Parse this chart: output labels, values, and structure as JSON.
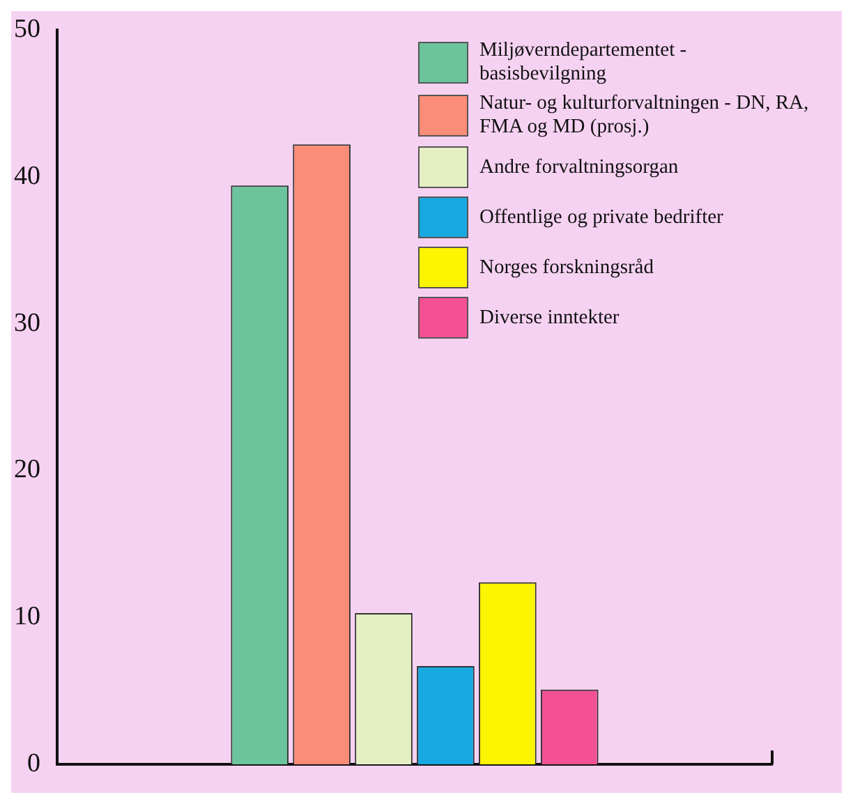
{
  "chart_data": {
    "type": "bar",
    "categories": [
      null
    ],
    "series": [
      {
        "name": "Miljøverndepartementet - basisbevilgning",
        "color": "#6cc49c",
        "values": [
          39.4
        ]
      },
      {
        "name": "Natur- og kulturforvaltningen - DN, RA, FMA og MD (prosj.)",
        "color": "#fa8c78",
        "values": [
          42.2
        ]
      },
      {
        "name": "Andre forvaltningsorgan",
        "color": "#e4f0c4",
        "values": [
          10.3
        ]
      },
      {
        "name": "Offentlige og private bedrifter",
        "color": "#18a8e0",
        "values": [
          6.7
        ]
      },
      {
        "name": "Norges forskningsråd",
        "color": "#fcf400",
        "values": [
          12.4
        ]
      },
      {
        "name": "Diverse inntekter",
        "color": "#f45094",
        "values": [
          5.1
        ]
      }
    ],
    "ylim": [
      0,
      50
    ],
    "yticks": [
      0,
      10,
      20,
      30,
      40,
      50
    ],
    "grid": false,
    "legend": "top right"
  }
}
